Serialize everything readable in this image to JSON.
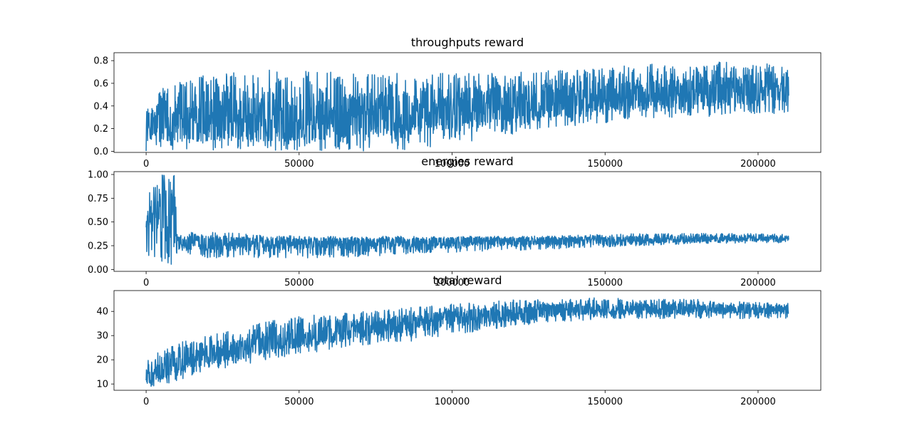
{
  "figure": {
    "line_color": "#1f77b4"
  },
  "chart_data": [
    {
      "type": "line",
      "title": "throughputs reward",
      "xlabel": "",
      "ylabel": "",
      "xlim": [
        -10500,
        220500
      ],
      "ylim": [
        -0.01,
        0.87
      ],
      "xticks": [
        0,
        50000,
        100000,
        150000,
        200000
      ],
      "xtick_labels": [
        "0",
        "50000",
        "100000",
        "150000",
        "200000"
      ],
      "yticks": [
        0.0,
        0.2,
        0.4,
        0.6,
        0.8
      ],
      "ytick_labels": [
        "0.0",
        "0.2",
        "0.4",
        "0.6",
        "0.8"
      ],
      "grid": false,
      "series": [
        {
          "color": "#1f77b4",
          "x": [
            0,
            1000,
            5000,
            10000,
            20000,
            40000,
            60000,
            80000,
            100000,
            120000,
            140000,
            160000,
            180000,
            200000,
            210000
          ],
          "low": [
            0.0,
            0.0,
            0.0,
            0.0,
            0.0,
            0.0,
            0.0,
            0.0,
            0.05,
            0.15,
            0.22,
            0.28,
            0.3,
            0.32,
            0.32
          ],
          "high": [
            0.35,
            0.4,
            0.55,
            0.6,
            0.68,
            0.72,
            0.7,
            0.7,
            0.7,
            0.7,
            0.72,
            0.76,
            0.8,
            0.78,
            0.75
          ],
          "mean": [
            0.2,
            0.22,
            0.25,
            0.26,
            0.27,
            0.28,
            0.3,
            0.33,
            0.38,
            0.43,
            0.46,
            0.5,
            0.52,
            0.54,
            0.55
          ]
        }
      ]
    },
    {
      "type": "line",
      "title": "energies reward",
      "xlabel": "",
      "ylabel": "",
      "xlim": [
        -10500,
        220500
      ],
      "ylim": [
        -0.02,
        1.03
      ],
      "xticks": [
        0,
        50000,
        100000,
        150000,
        200000
      ],
      "xtick_labels": [
        "0",
        "50000",
        "100000",
        "150000",
        "200000"
      ],
      "yticks": [
        0.0,
        0.25,
        0.5,
        0.75,
        1.0
      ],
      "ytick_labels": [
        "0.00",
        "0.25",
        "0.50",
        "0.75",
        "1.00"
      ],
      "grid": false,
      "series": [
        {
          "color": "#1f77b4",
          "x": [
            0,
            2000,
            5000,
            9500,
            10000,
            20000,
            40000,
            60000,
            80000,
            100000,
            120000,
            140000,
            160000,
            180000,
            200000,
            210000
          ],
          "low": [
            0.05,
            0.1,
            0.05,
            0.05,
            0.15,
            0.12,
            0.12,
            0.12,
            0.15,
            0.18,
            0.2,
            0.22,
            0.25,
            0.27,
            0.28,
            0.28
          ],
          "high": [
            0.65,
            0.95,
            1.0,
            1.0,
            0.38,
            0.4,
            0.36,
            0.35,
            0.35,
            0.35,
            0.35,
            0.36,
            0.38,
            0.38,
            0.38,
            0.37
          ],
          "mean": [
            0.4,
            0.5,
            0.55,
            0.55,
            0.28,
            0.28,
            0.27,
            0.27,
            0.28,
            0.29,
            0.3,
            0.3,
            0.31,
            0.32,
            0.33,
            0.33
          ]
        }
      ]
    },
    {
      "type": "line",
      "title": "total reward",
      "xlabel": "",
      "ylabel": "",
      "xlim": [
        -10500,
        220500
      ],
      "ylim": [
        7.4,
        48.6
      ],
      "xticks": [
        0,
        50000,
        100000,
        150000,
        200000
      ],
      "xtick_labels": [
        "0",
        "50000",
        "100000",
        "150000",
        "200000"
      ],
      "yticks": [
        10,
        20,
        30,
        40
      ],
      "ytick_labels": [
        "10",
        "20",
        "30",
        "40"
      ],
      "grid": false,
      "series": [
        {
          "color": "#1f77b4",
          "x": [
            0,
            5000,
            10000,
            20000,
            30000,
            40000,
            50000,
            60000,
            70000,
            80000,
            90000,
            100000,
            110000,
            120000,
            130000,
            140000,
            150000,
            160000,
            170000,
            180000,
            190000,
            200000,
            210000
          ],
          "low": [
            9,
            9,
            11,
            16,
            17,
            20,
            22,
            24,
            26,
            27,
            28,
            30,
            32,
            34,
            35,
            36,
            37,
            37,
            37,
            37,
            37,
            37,
            37
          ],
          "high": [
            20,
            24,
            27,
            30,
            33,
            36,
            38,
            39,
            40,
            41,
            42,
            43,
            44,
            45,
            45,
            45,
            46,
            45,
            45,
            45,
            44,
            44,
            44
          ],
          "mean": [
            13,
            15,
            19,
            22,
            24,
            27,
            29,
            31,
            33,
            34,
            35,
            37,
            38,
            39,
            40,
            41,
            41,
            41,
            41,
            41,
            41,
            41,
            41
          ]
        }
      ]
    }
  ]
}
